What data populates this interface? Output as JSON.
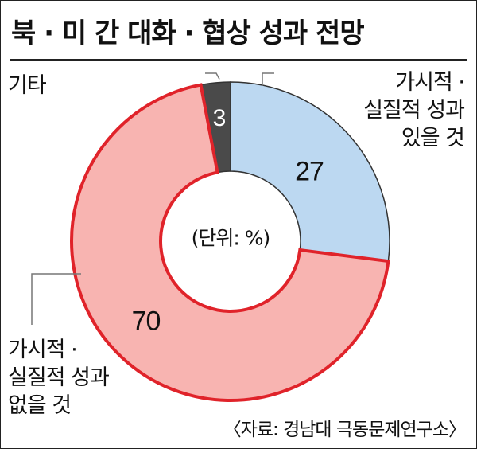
{
  "title": "북 · 미 간 대화 · 협상 성과 전망",
  "unit_label": "(단위: %)",
  "source": "〈자료: 경남대 극동문제연구소〉",
  "labels": {
    "other": "기타",
    "yes": [
      "가시적 ·",
      "실질적 성과",
      "있을 것"
    ],
    "no": [
      "가시적 ·",
      "실질적 성과",
      "없을 것"
    ]
  },
  "colors": {
    "yes_fill": "#bcd8f1",
    "no_fill": "#f8b4b1",
    "no_stroke": "#e0232a",
    "other_fill": "#4a4a4a",
    "stroke": "#333333"
  },
  "chart_data": {
    "type": "pie",
    "categories": [
      "가시적 · 실질적 성과 있을 것",
      "가시적 · 실질적 성과 없을 것",
      "기타"
    ],
    "values": [
      27,
      70,
      3
    ],
    "value_labels": [
      "27",
      "70",
      "3"
    ],
    "unit": "%"
  }
}
